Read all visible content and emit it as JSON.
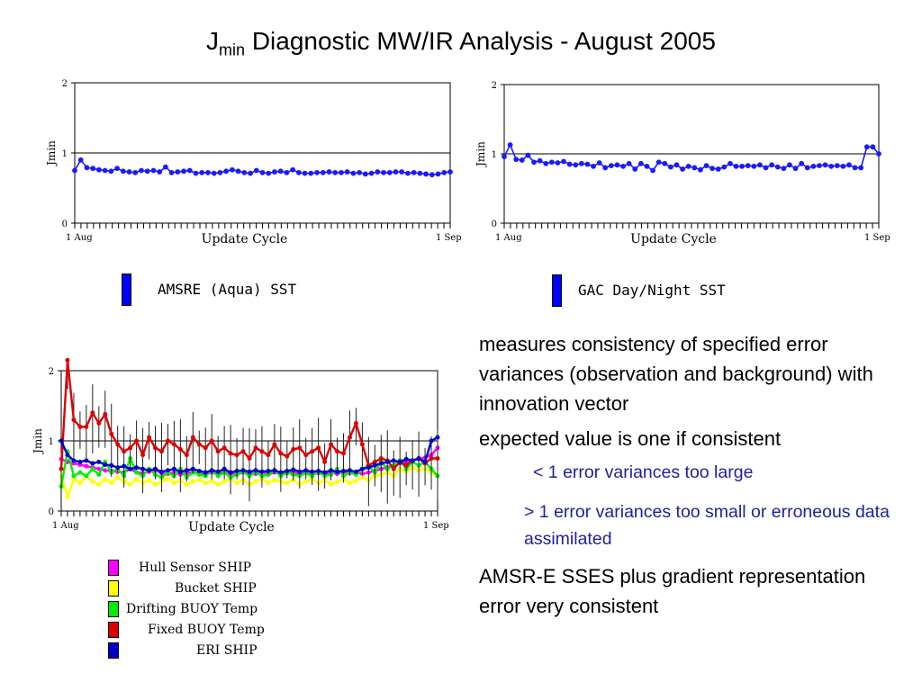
{
  "slide": {
    "title_main": "J",
    "title_sub": "min",
    "title_rest": " Diagnostic MW/IR Analysis - August 2005"
  },
  "colors": {
    "blue": "#1a1aff",
    "magenta": "#ff00ff",
    "yellow": "#ffff00",
    "green": "#00ee00",
    "red": "#dd0000",
    "eri_blue": "#0000cc"
  },
  "notes": {
    "p1": "measures consistency of specified error variances (observation and background) with innovation vector",
    "p2": "expected value is one if consistent",
    "s1": "< 1 error variances too large",
    "s2": "> 1 error variances too small or erroneous data assimilated",
    "p3": "AMSR-E SSES plus gradient representation error very consistent"
  },
  "chart_data": [
    {
      "type": "line",
      "ylabel": "Jmin",
      "xlabel": "Update Cycle",
      "x_start_label": "1 Aug",
      "x_end_label": "1 Sep",
      "ylim": [
        0,
        2
      ],
      "yticks": [
        "0",
        "1",
        "2"
      ],
      "reference_line": 1,
      "legend": "AMSRE (Aqua) SST",
      "series": [
        {
          "name": "AMSRE (Aqua) SST",
          "color": "#1a1aff",
          "values": [
            0.75,
            0.9,
            0.79,
            0.78,
            0.76,
            0.75,
            0.74,
            0.78,
            0.74,
            0.73,
            0.72,
            0.75,
            0.74,
            0.75,
            0.73,
            0.8,
            0.72,
            0.73,
            0.74,
            0.75,
            0.71,
            0.72,
            0.72,
            0.71,
            0.72,
            0.74,
            0.76,
            0.74,
            0.72,
            0.71,
            0.75,
            0.72,
            0.71,
            0.73,
            0.74,
            0.72,
            0.76,
            0.72,
            0.71,
            0.71,
            0.72,
            0.72,
            0.73,
            0.72,
            0.72,
            0.73,
            0.71,
            0.72,
            0.7,
            0.71,
            0.73,
            0.72,
            0.72,
            0.73,
            0.73,
            0.71,
            0.72,
            0.71,
            0.7,
            0.69,
            0.7,
            0.72,
            0.73
          ]
        }
      ]
    },
    {
      "type": "line",
      "ylabel": "Jmin",
      "xlabel": "Update Cycle",
      "x_start_label": "1 Aug",
      "x_end_label": "1 Sep",
      "ylim": [
        0,
        2
      ],
      "yticks": [
        "0",
        "1",
        "2"
      ],
      "reference_line": 1,
      "legend": "GAC Day/Night SST",
      "series": [
        {
          "name": "GAC Day/Night SST",
          "color": "#1a1aff",
          "values": [
            0.96,
            1.13,
            0.92,
            0.91,
            0.98,
            0.88,
            0.9,
            0.86,
            0.88,
            0.87,
            0.89,
            0.85,
            0.84,
            0.86,
            0.85,
            0.82,
            0.87,
            0.8,
            0.83,
            0.84,
            0.82,
            0.86,
            0.78,
            0.86,
            0.82,
            0.76,
            0.88,
            0.86,
            0.81,
            0.84,
            0.78,
            0.82,
            0.8,
            0.77,
            0.83,
            0.79,
            0.78,
            0.81,
            0.86,
            0.82,
            0.82,
            0.83,
            0.82,
            0.84,
            0.8,
            0.84,
            0.81,
            0.79,
            0.84,
            0.79,
            0.86,
            0.8,
            0.82,
            0.83,
            0.84,
            0.82,
            0.83,
            0.82,
            0.84,
            0.8,
            0.8,
            1.1,
            1.1,
            1.0
          ]
        }
      ]
    },
    {
      "type": "line",
      "ylabel": "Jmin",
      "xlabel": "Update Cycle",
      "x_start_label": "1 Aug",
      "x_end_label": "1 Sep",
      "ylim": [
        0,
        2
      ],
      "yticks": [
        "0",
        "1",
        "2"
      ],
      "reference_line": 1,
      "series": [
        {
          "name": "Hull Sensor SHIP",
          "color": "#ff00ff",
          "values": [
            0.74,
            0.7,
            0.68,
            0.66,
            0.64,
            0.62,
            0.6,
            0.58,
            0.57,
            0.56,
            0.55,
            0.6,
            0.55,
            0.54,
            0.56,
            0.58,
            0.54,
            0.53,
            0.55,
            0.52,
            0.54,
            0.56,
            0.53,
            0.52,
            0.55,
            0.53,
            0.56,
            0.54,
            0.52,
            0.55,
            0.54,
            0.53,
            0.56,
            0.52,
            0.55,
            0.53,
            0.54,
            0.56,
            0.52,
            0.55,
            0.53,
            0.54,
            0.52,
            0.55,
            0.53,
            0.56,
            0.54,
            0.55,
            0.53,
            0.55,
            0.57,
            0.6,
            0.62,
            0.65,
            0.68,
            0.7,
            0.72,
            0.74,
            0.76,
            0.8,
            0.9
          ]
        },
        {
          "name": "Bucket SHIP",
          "color": "#ffff00",
          "values": [
            0.5,
            0.2,
            0.45,
            0.4,
            0.5,
            0.42,
            0.38,
            0.45,
            0.4,
            0.48,
            0.42,
            0.38,
            0.45,
            0.4,
            0.44,
            0.38,
            0.42,
            0.46,
            0.4,
            0.44,
            0.38,
            0.42,
            0.45,
            0.4,
            0.43,
            0.38,
            0.42,
            0.46,
            0.4,
            0.44,
            0.38,
            0.42,
            0.46,
            0.4,
            0.44,
            0.42,
            0.4,
            0.45,
            0.38,
            0.42,
            0.46,
            0.4,
            0.44,
            0.38,
            0.42,
            0.45,
            0.4,
            0.43,
            0.48,
            0.44,
            0.5,
            0.52,
            0.55,
            0.5,
            0.6,
            0.56,
            0.62,
            0.58,
            0.6,
            0.55,
            0.5
          ]
        },
        {
          "name": "Drifting BUOY Temp",
          "color": "#00ee00",
          "values": [
            0.35,
            0.85,
            0.5,
            0.55,
            0.5,
            0.6,
            0.52,
            0.7,
            0.55,
            0.6,
            0.5,
            0.75,
            0.55,
            0.5,
            0.6,
            0.52,
            0.48,
            0.55,
            0.5,
            0.6,
            0.48,
            0.55,
            0.52,
            0.5,
            0.58,
            0.5,
            0.55,
            0.48,
            0.52,
            0.56,
            0.5,
            0.55,
            0.5,
            0.52,
            0.58,
            0.5,
            0.55,
            0.52,
            0.5,
            0.54,
            0.5,
            0.56,
            0.5,
            0.52,
            0.6,
            0.5,
            0.55,
            0.52,
            0.6,
            0.65,
            0.55,
            0.7,
            0.6,
            0.65,
            0.72,
            0.6,
            0.7,
            0.65,
            0.7,
            0.6,
            0.5
          ]
        },
        {
          "name": "Fixed BUOY Temp",
          "color": "#dd0000",
          "values": [
            0.6,
            2.15,
            1.3,
            1.2,
            1.2,
            1.4,
            1.25,
            1.38,
            1.1,
            0.95,
            0.85,
            0.9,
            1.0,
            0.8,
            1.05,
            0.9,
            0.85,
            1.0,
            0.95,
            0.88,
            0.8,
            1.05,
            0.95,
            0.9,
            1.0,
            0.85,
            0.9,
            0.82,
            0.8,
            0.85,
            0.75,
            0.9,
            0.85,
            0.8,
            0.95,
            0.82,
            0.78,
            0.88,
            0.9,
            0.8,
            0.85,
            0.9,
            0.7,
            0.95,
            0.85,
            0.82,
            1.05,
            1.25,
            0.95,
            0.65,
            0.7,
            0.75,
            0.72,
            0.6,
            0.7,
            0.65,
            0.72,
            0.75,
            0.68,
            0.75,
            0.75
          ]
        },
        {
          "name": "ERI SHIP",
          "color": "#0000cc",
          "values": [
            1.0,
            0.8,
            0.72,
            0.7,
            0.72,
            0.68,
            0.7,
            0.66,
            0.65,
            0.62,
            0.64,
            0.6,
            0.62,
            0.6,
            0.58,
            0.6,
            0.56,
            0.58,
            0.6,
            0.56,
            0.58,
            0.6,
            0.57,
            0.55,
            0.58,
            0.56,
            0.6,
            0.55,
            0.57,
            0.58,
            0.56,
            0.58,
            0.56,
            0.57,
            0.58,
            0.55,
            0.57,
            0.59,
            0.56,
            0.58,
            0.56,
            0.57,
            0.55,
            0.58,
            0.56,
            0.57,
            0.58,
            0.56,
            0.6,
            0.62,
            0.65,
            0.68,
            0.7,
            0.72,
            0.7,
            0.74,
            0.72,
            0.75,
            0.7,
            1.0,
            1.05
          ]
        }
      ],
      "legend": [
        "Hull Sensor SHIP",
        "Bucket SHIP",
        "Drifting BUOY Temp",
        "Fixed BUOY Temp",
        "ERI SHIP"
      ]
    }
  ]
}
